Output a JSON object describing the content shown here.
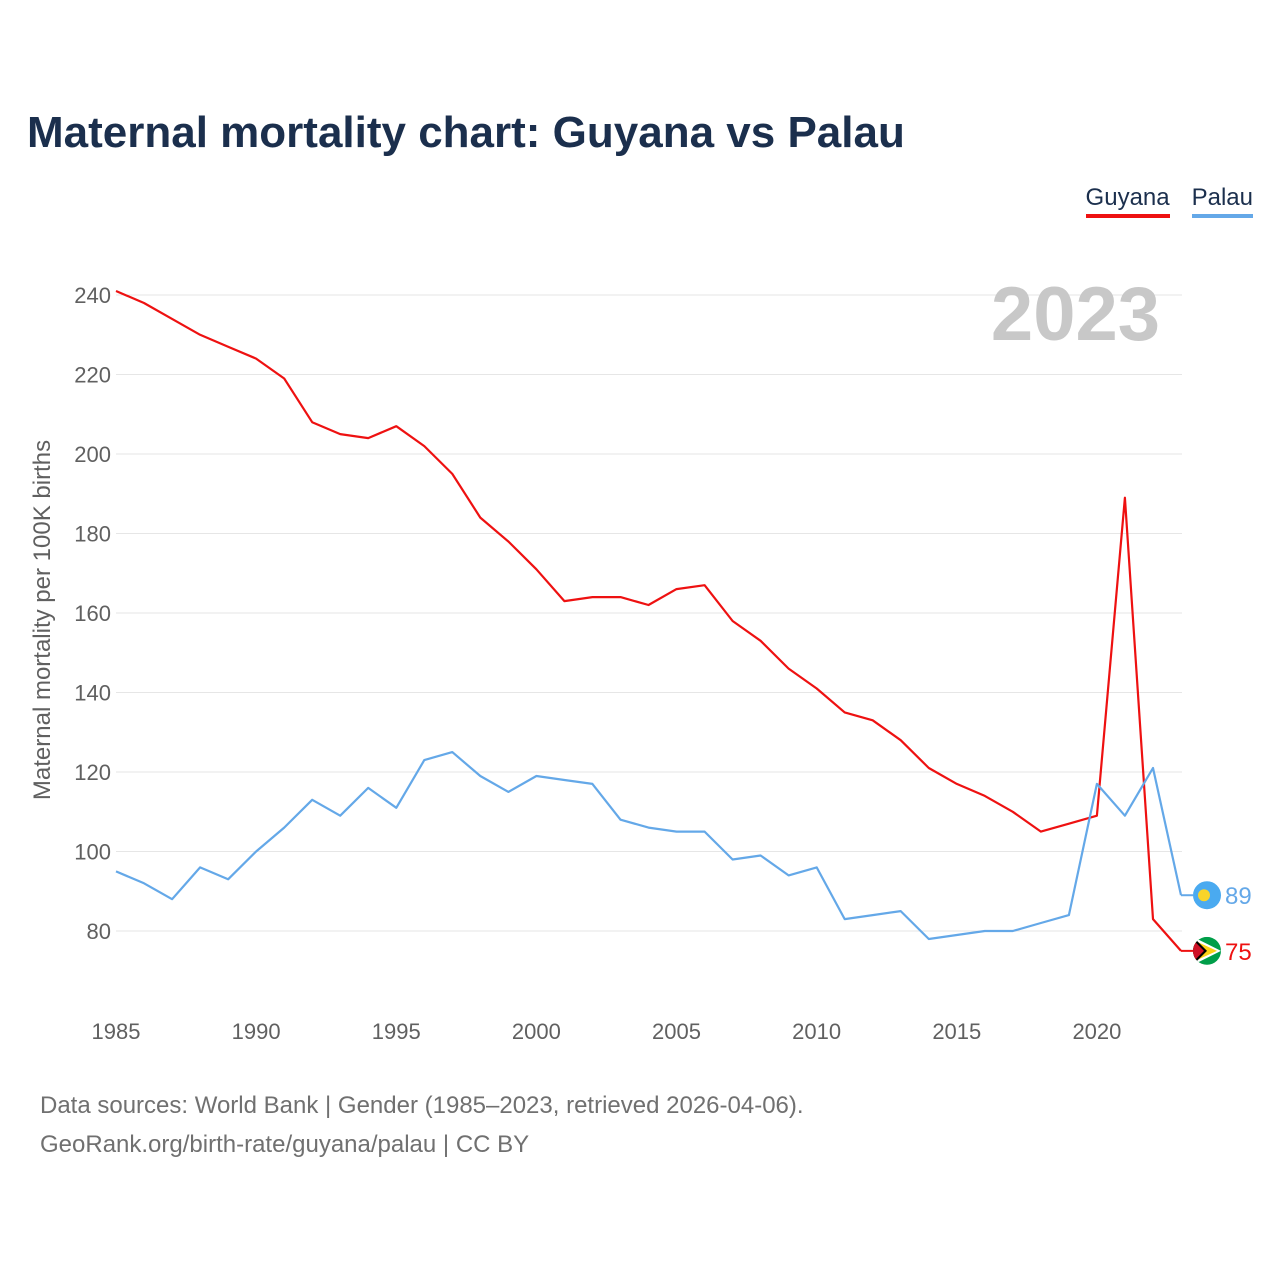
{
  "title": "Maternal mortality chart: Guyana vs Palau",
  "legend": [
    {
      "name": "Guyana",
      "color": "#ee1111"
    },
    {
      "name": "Palau",
      "color": "#64a8e8"
    }
  ],
  "footer": {
    "line1": "Data sources: World Bank | Gender (1985–2023, retrieved 2026-04-06).",
    "line2": "GeoRank.org/birth-rate/guyana/palau | CC BY"
  },
  "chart_data": {
    "type": "line",
    "year_label": "2023",
    "ylabel": "Maternal mortality per 100K births",
    "xlim": [
      1985,
      2023
    ],
    "ylim": [
      65,
      245
    ],
    "x_ticks": [
      1985,
      1990,
      1995,
      2000,
      2005,
      2010,
      2015,
      2020
    ],
    "y_ticks": [
      80,
      100,
      120,
      140,
      160,
      180,
      200,
      220,
      240
    ],
    "x": [
      1985,
      1986,
      1987,
      1988,
      1989,
      1990,
      1991,
      1992,
      1993,
      1994,
      1995,
      1996,
      1997,
      1998,
      1999,
      2000,
      2001,
      2002,
      2003,
      2004,
      2005,
      2006,
      2007,
      2008,
      2009,
      2010,
      2011,
      2012,
      2013,
      2014,
      2015,
      2016,
      2017,
      2018,
      2019,
      2020,
      2021,
      2022,
      2023
    ],
    "series": [
      {
        "name": "Guyana",
        "color": "#ee1111",
        "end_label": "75",
        "values": [
          241,
          238,
          234,
          230,
          227,
          224,
          219,
          208,
          205,
          204,
          207,
          202,
          195,
          184,
          178,
          171,
          163,
          164,
          164,
          162,
          166,
          167,
          158,
          153,
          146,
          141,
          135,
          133,
          128,
          121,
          117,
          114,
          110,
          105,
          107,
          109,
          189,
          83,
          75
        ]
      },
      {
        "name": "Palau",
        "color": "#64a8e8",
        "end_label": "89",
        "values": [
          95,
          92,
          88,
          96,
          93,
          100,
          106,
          113,
          109,
          116,
          111,
          123,
          125,
          119,
          115,
          119,
          118,
          117,
          108,
          106,
          105,
          105,
          98,
          99,
          94,
          96,
          83,
          84,
          85,
          78,
          79,
          80,
          80,
          82,
          84,
          117,
          109,
          121,
          89
        ]
      }
    ]
  }
}
